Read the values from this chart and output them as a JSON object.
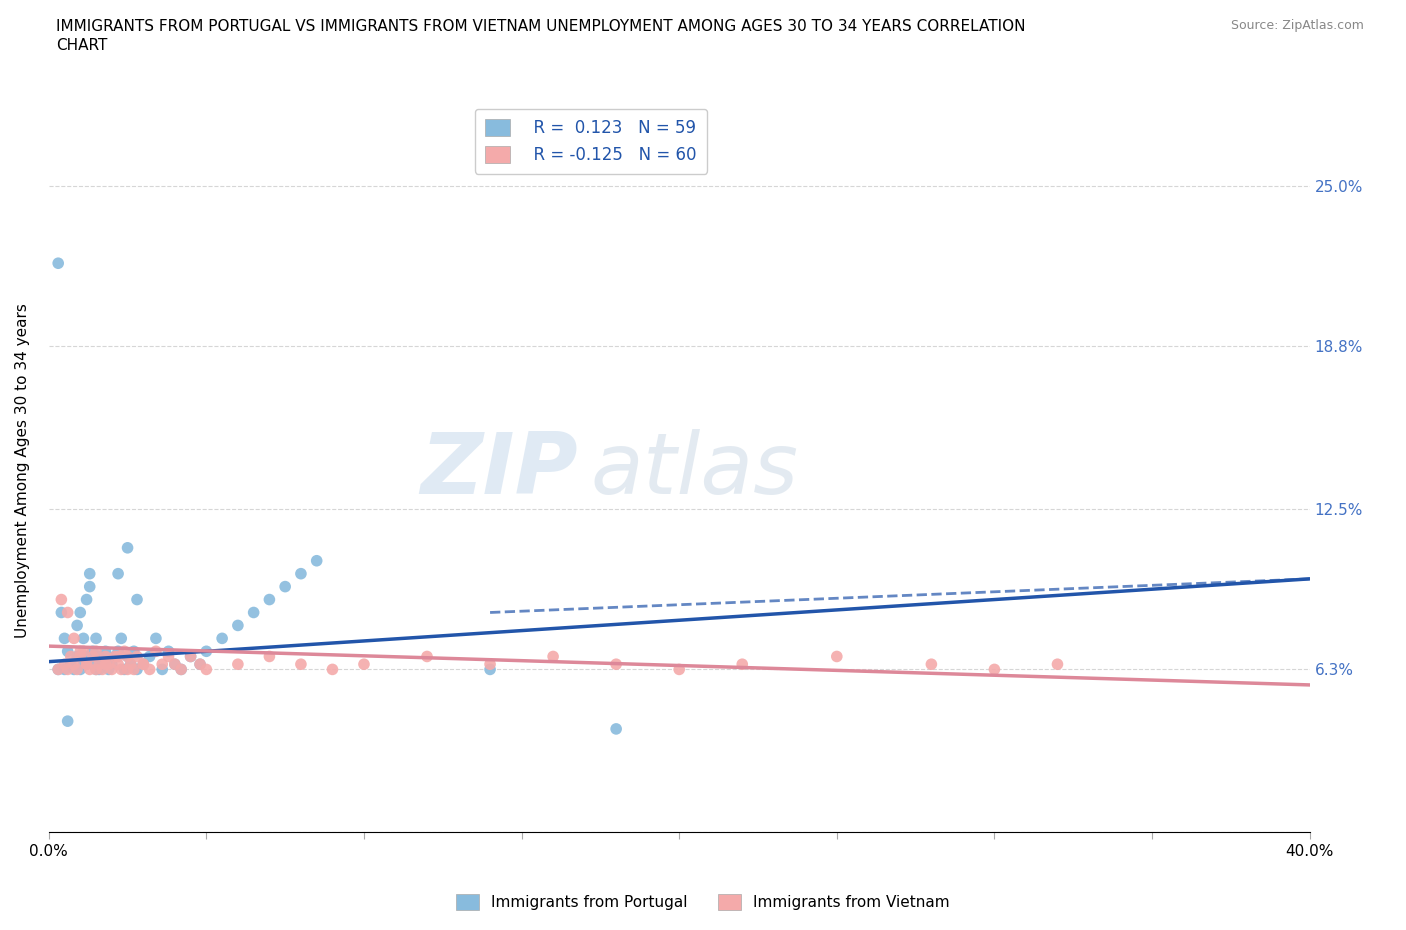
{
  "title": "IMMIGRANTS FROM PORTUGAL VS IMMIGRANTS FROM VIETNAM UNEMPLOYMENT AMONG AGES 30 TO 34 YEARS CORRELATION\nCHART",
  "source_text": "Source: ZipAtlas.com",
  "ylabel": "Unemployment Among Ages 30 to 34 years",
  "xlim": [
    0.0,
    0.4
  ],
  "ylim": [
    0.0,
    0.28
  ],
  "xticks": [
    0.0,
    0.1,
    0.2,
    0.3,
    0.4
  ],
  "xticklabels": [
    "0.0%",
    "",
    "",
    "",
    "40.0%"
  ],
  "ytick_positions": [
    0.0,
    0.063,
    0.125,
    0.188,
    0.25
  ],
  "right_ytick_positions": [
    0.063,
    0.125,
    0.188,
    0.25
  ],
  "right_ytick_labels": [
    "6.3%",
    "12.5%",
    "18.8%",
    "25.0%"
  ],
  "portugal_color": "#88bbdd",
  "vietnam_color": "#f4aaaa",
  "portugal_line_color": "#2255aa",
  "vietnam_line_color": "#dd8899",
  "portugal_R": 0.123,
  "portugal_N": 59,
  "vietnam_R": -0.125,
  "vietnam_N": 60,
  "watermark_zip": "ZIP",
  "watermark_atlas": "atlas",
  "portugal_scatter_x": [
    0.003,
    0.005,
    0.006,
    0.007,
    0.008,
    0.009,
    0.009,
    0.01,
    0.01,
    0.011,
    0.011,
    0.012,
    0.012,
    0.013,
    0.013,
    0.014,
    0.014,
    0.015,
    0.015,
    0.016,
    0.016,
    0.017,
    0.018,
    0.019,
    0.02,
    0.021,
    0.022,
    0.023,
    0.024,
    0.025,
    0.026,
    0.027,
    0.028,
    0.03,
    0.032,
    0.034,
    0.036,
    0.038,
    0.04,
    0.042,
    0.045,
    0.048,
    0.05,
    0.055,
    0.06,
    0.065,
    0.07,
    0.075,
    0.08,
    0.085,
    0.003,
    0.004,
    0.005,
    0.006,
    0.022,
    0.025,
    0.028,
    0.14,
    0.18
  ],
  "portugal_scatter_y": [
    0.063,
    0.063,
    0.07,
    0.065,
    0.063,
    0.068,
    0.08,
    0.063,
    0.085,
    0.065,
    0.075,
    0.068,
    0.09,
    0.095,
    0.1,
    0.07,
    0.065,
    0.063,
    0.075,
    0.063,
    0.068,
    0.065,
    0.07,
    0.063,
    0.065,
    0.068,
    0.07,
    0.075,
    0.063,
    0.068,
    0.065,
    0.07,
    0.063,
    0.065,
    0.068,
    0.075,
    0.063,
    0.07,
    0.065,
    0.063,
    0.068,
    0.065,
    0.07,
    0.075,
    0.08,
    0.085,
    0.09,
    0.095,
    0.1,
    0.105,
    0.22,
    0.085,
    0.075,
    0.043,
    0.1,
    0.11,
    0.09,
    0.063,
    0.04
  ],
  "vietnam_scatter_x": [
    0.003,
    0.005,
    0.006,
    0.007,
    0.008,
    0.009,
    0.01,
    0.011,
    0.012,
    0.013,
    0.014,
    0.015,
    0.016,
    0.017,
    0.018,
    0.019,
    0.02,
    0.021,
    0.022,
    0.023,
    0.024,
    0.025,
    0.026,
    0.027,
    0.028,
    0.03,
    0.032,
    0.034,
    0.036,
    0.038,
    0.04,
    0.042,
    0.045,
    0.048,
    0.05,
    0.06,
    0.07,
    0.08,
    0.09,
    0.1,
    0.12,
    0.14,
    0.16,
    0.18,
    0.2,
    0.22,
    0.25,
    0.28,
    0.3,
    0.32,
    0.004,
    0.006,
    0.008,
    0.01,
    0.012,
    0.015,
    0.018,
    0.022,
    0.025,
    0.03
  ],
  "vietnam_scatter_y": [
    0.063,
    0.065,
    0.063,
    0.068,
    0.065,
    0.063,
    0.068,
    0.07,
    0.065,
    0.063,
    0.068,
    0.07,
    0.065,
    0.063,
    0.068,
    0.065,
    0.063,
    0.068,
    0.065,
    0.063,
    0.07,
    0.068,
    0.065,
    0.063,
    0.068,
    0.065,
    0.063,
    0.07,
    0.065,
    0.068,
    0.065,
    0.063,
    0.068,
    0.065,
    0.063,
    0.065,
    0.068,
    0.065,
    0.063,
    0.065,
    0.068,
    0.065,
    0.068,
    0.065,
    0.063,
    0.065,
    0.068,
    0.065,
    0.063,
    0.065,
    0.09,
    0.085,
    0.075,
    0.07,
    0.065,
    0.063,
    0.065,
    0.068,
    0.063,
    0.065
  ],
  "portugal_line_x0": 0.0,
  "portugal_line_y0": 0.066,
  "portugal_line_x1": 0.4,
  "portugal_line_y1": 0.098,
  "vietnam_line_x0": 0.0,
  "vietnam_line_y0": 0.072,
  "vietnam_line_x1": 0.4,
  "vietnam_line_y1": 0.057
}
